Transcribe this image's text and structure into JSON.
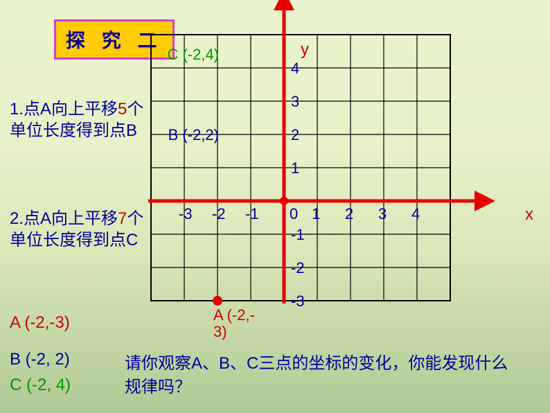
{
  "title": "探 究 二",
  "left": {
    "q1_pre": "1.点A向上平移",
    "q1_num": "5",
    "q1_post": "个单位长度得到点B",
    "q2_pre": "2.点A向上平移",
    "q2_num": "7",
    "q2_post": "个单位长度得到点C",
    "a_label": "A (-2,-3)",
    "b_label": "B (-2, 2)",
    "c_label": "C (-2, 4)"
  },
  "bottom": "请你观察A、B、C三点的坐标的变化，你能发现什么规律吗？",
  "chart": {
    "origin_label": "0",
    "x_label": "x",
    "y_label": "y",
    "cell": 48,
    "grid_x_min": -4,
    "grid_x_max": 5,
    "grid_y_min": -3,
    "grid_y_max": 5,
    "x_range": [
      -3,
      4
    ],
    "y_range": [
      -3,
      4
    ],
    "x_ticks": [
      -3,
      -2,
      -1,
      1,
      2,
      3,
      4
    ],
    "y_ticks": [
      -3,
      -2,
      -1,
      1,
      2,
      3,
      4
    ],
    "colors": {
      "grid": "#000000",
      "axes": "#e60000",
      "origin_dot": "#e60000",
      "point_fill": "#e60000",
      "tick_label": "#000099",
      "a_label": "#cc0000",
      "b_label": "#000099",
      "c_label": "#009900"
    },
    "points": {
      "A": {
        "x": -2,
        "y": -3,
        "label": "A (-2,-3)",
        "color": "#cc0000",
        "shown": true
      },
      "B": {
        "x": -2,
        "y": 2,
        "label": "B (-2,2)",
        "color": "#000099",
        "shown": false
      },
      "C": {
        "x": -2,
        "y": 4,
        "label": "C (-2,4)",
        "color": "#009900",
        "shown": false
      }
    },
    "axis_stroke_width": 5,
    "grid_stroke_width": 1.2,
    "border_stroke_width": 2
  }
}
